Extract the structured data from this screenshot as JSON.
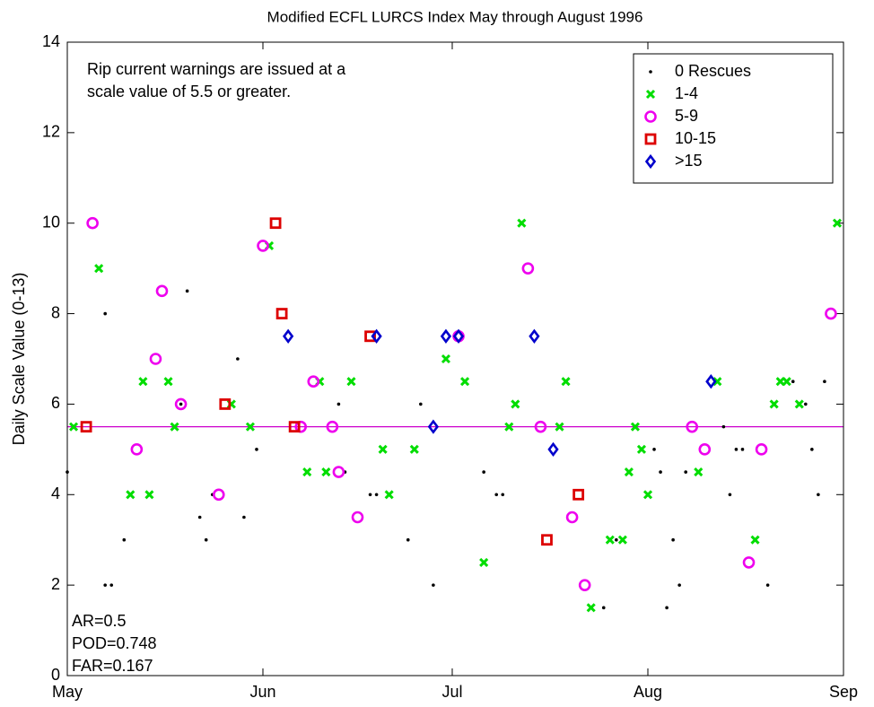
{
  "chart_data": {
    "type": "scatter",
    "title": "Modified ECFL LURCS Index May through August 1996",
    "y_label": "Daily Scale Value (0-13)",
    "annotation": [
      "Rip current warnings are issued at a",
      "scale value of 5.5 or greater."
    ],
    "stats": [
      "AR=0.5",
      "POD=0.748",
      "FAR=0.167"
    ],
    "threshold": 5.5,
    "threshold_color": "#cc00cc",
    "xlim": [
      0,
      123
    ],
    "xticks": [
      {
        "value": 0,
        "label": "May"
      },
      {
        "value": 31,
        "label": "Jun"
      },
      {
        "value": 61,
        "label": "Jul"
      },
      {
        "value": 92,
        "label": "Aug"
      },
      {
        "value": 123,
        "label": "Sep"
      }
    ],
    "ylim": [
      0,
      14
    ],
    "yticks": [
      0,
      2,
      4,
      6,
      8,
      10,
      12,
      14
    ],
    "legend": "northeast",
    "series": [
      {
        "name": "0 Rescues",
        "color": "#000000",
        "marker": "dot",
        "x": [
          0,
          6,
          6,
          7,
          9,
          19,
          18,
          21,
          22,
          23,
          27,
          28,
          30,
          43,
          44,
          48,
          49,
          54,
          56,
          58,
          66,
          68,
          69,
          85,
          87,
          93,
          94,
          95,
          96,
          97,
          98,
          104,
          105,
          106,
          107,
          111,
          115,
          117,
          118,
          119,
          120
        ],
        "values": [
          4.5,
          8,
          2,
          2,
          3,
          8.5,
          6,
          3.5,
          3,
          4,
          7,
          3.5,
          5,
          6,
          4.5,
          4,
          4,
          3,
          6,
          2,
          4.5,
          4,
          4,
          1.5,
          3,
          5,
          4.5,
          1.5,
          3,
          2,
          4.5,
          5.5,
          4,
          5,
          5,
          2,
          6.5,
          6,
          5,
          4,
          6.5
        ]
      },
      {
        "name": "1-4",
        "color": "#00dd00",
        "marker": "x",
        "x": [
          1,
          5,
          10,
          12,
          13,
          16,
          17,
          26,
          29,
          32,
          38,
          40,
          41,
          45,
          50,
          51,
          55,
          60,
          63,
          66,
          70,
          71,
          72,
          78,
          79,
          83,
          86,
          88,
          89,
          90,
          91,
          92,
          100,
          103,
          109,
          112,
          113,
          114,
          116,
          122
        ],
        "values": [
          5.5,
          9,
          4,
          6.5,
          4,
          6.5,
          5.5,
          6,
          5.5,
          9.5,
          4.5,
          6.5,
          4.5,
          6.5,
          5,
          4,
          5,
          7,
          6.5,
          2.5,
          5.5,
          6,
          10,
          5.5,
          6.5,
          1.5,
          3,
          3,
          4.5,
          5.5,
          5,
          4,
          4.5,
          6.5,
          3,
          6,
          6.5,
          6.5,
          6,
          10
        ]
      },
      {
        "name": "5-9",
        "color": "#ee00ee",
        "marker": "circle",
        "x": [
          4,
          11,
          14,
          15,
          18,
          24,
          31,
          37,
          39,
          42,
          43,
          46,
          62,
          73,
          75,
          80,
          82,
          99,
          101,
          108,
          110,
          121
        ],
        "values": [
          10,
          5,
          7,
          8.5,
          6,
          4,
          9.5,
          5.5,
          6.5,
          5.5,
          4.5,
          3.5,
          7.5,
          9,
          5.5,
          3.5,
          2,
          5.5,
          5,
          2.5,
          5,
          8
        ]
      },
      {
        "name": "10-15",
        "color": "#dd0000",
        "marker": "square",
        "x": [
          3,
          25,
          33,
          34,
          36,
          48,
          76,
          81
        ],
        "values": [
          5.5,
          6,
          10,
          8,
          5.5,
          7.5,
          3,
          4
        ]
      },
      {
        "name": ">15",
        "color": "#0000cc",
        "marker": "diamond",
        "x": [
          35,
          49,
          58,
          60,
          62,
          74,
          77,
          102
        ],
        "values": [
          7.5,
          7.5,
          5.5,
          7.5,
          7.5,
          7.5,
          5,
          6.5
        ]
      }
    ]
  }
}
